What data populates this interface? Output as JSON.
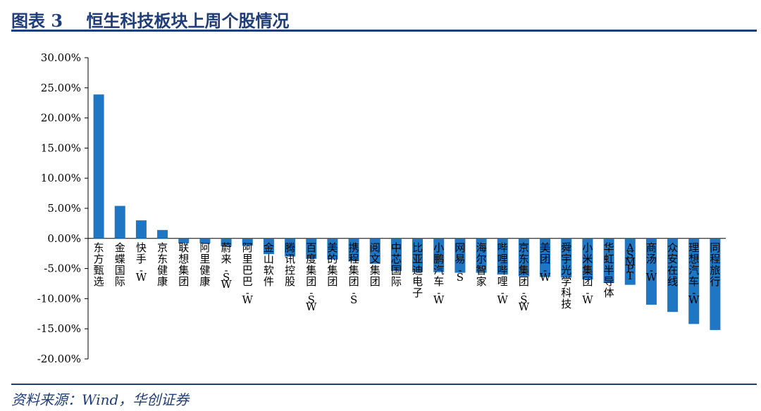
{
  "figure": {
    "title": "图表 3    恒生科技板块上周个股情况",
    "source": "资料来源：Wind，华创证券"
  },
  "colors": {
    "bar": "#1f77c4",
    "accent": "#1f3d7a"
  },
  "chart_data": {
    "type": "bar",
    "title": "",
    "xlabel": "",
    "ylabel": "",
    "ylim": [
      -20,
      30
    ],
    "yticks": [
      "30.00%",
      "25.00%",
      "20.00%",
      "15.00%",
      "10.00%",
      "5.00%",
      "0.00%",
      "-5.00%",
      "-10.00%",
      "-15.00%",
      "-20.00%"
    ],
    "ytick_values": [
      30,
      25,
      20,
      15,
      10,
      5,
      0,
      -5,
      -10,
      -15,
      -20
    ],
    "grid": false,
    "legend": "none",
    "categories": [
      "东方甄选",
      "金蝶国际",
      "快手-W",
      "京东健康",
      "联想集团",
      "阿里健康",
      "蔚来-SW",
      "阿里巴巴-W",
      "金山软件",
      "腾讯控股",
      "百度集团-SW",
      "美的集团",
      "携程集团-S",
      "阅文集团",
      "中芯国际",
      "比亚迪电子",
      "小鹏汽车-W",
      "网易-S",
      "海尔智家",
      "哔哩哔哩-W",
      "京东集团-SW",
      "美团-W",
      "舜宇光学科技",
      "小米集团-W",
      "华虹半导体",
      "ASMPT",
      "商汤-W",
      "众安在线",
      "理想汽车-W",
      "同程旅行"
    ],
    "values": [
      23.9,
      5.4,
      3.0,
      1.4,
      -0.8,
      -0.8,
      -1.3,
      -1.2,
      -2.6,
      -3.0,
      -3.4,
      -3.5,
      -3.8,
      -4.2,
      -5.4,
      -5.6,
      -5.6,
      -5.7,
      -5.7,
      -6.0,
      -6.3,
      -6.4,
      -6.5,
      -6.8,
      -7.4,
      -7.7,
      -11.0,
      -12.2,
      -14.2,
      -15.2
    ]
  }
}
